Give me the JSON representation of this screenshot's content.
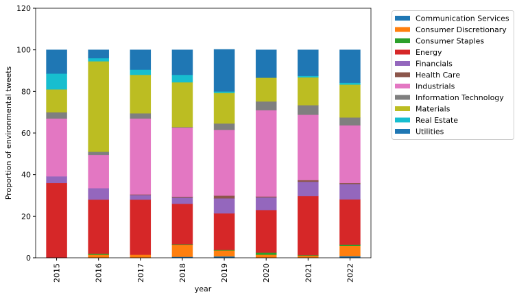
{
  "chart_data": {
    "type": "bar",
    "stacked": true,
    "xlabel": "year",
    "ylabel": "Proportion of environmental tweets",
    "ylim": [
      0,
      120
    ],
    "yticks": [
      0,
      20,
      40,
      60,
      80,
      100,
      120
    ],
    "grid": false,
    "legend_position": "outside-right",
    "categories": [
      "2015",
      "2016",
      "2017",
      "2018",
      "2019",
      "2020",
      "2021",
      "2022"
    ],
    "series": [
      {
        "name": "Communication Services",
        "color": "#1f77b4",
        "values": [
          0,
          0,
          0,
          0.5,
          0.7,
          0,
          0,
          0.8
        ]
      },
      {
        "name": "Consumer Discretionary",
        "color": "#ff7f0e",
        "values": [
          0,
          1.5,
          1.5,
          5.8,
          2.8,
          1.5,
          1.0,
          4.9
        ]
      },
      {
        "name": "Consumer Staples",
        "color": "#2ca02c",
        "values": [
          0,
          0.5,
          0,
          0.2,
          0.3,
          1.0,
          0.3,
          0.7
        ]
      },
      {
        "name": "Energy",
        "color": "#d62728",
        "values": [
          36.0,
          26.0,
          26.5,
          19.5,
          17.6,
          20.5,
          28.4,
          21.7
        ]
      },
      {
        "name": "Financials",
        "color": "#9467bd",
        "values": [
          3.2,
          5.5,
          2.2,
          3.0,
          7.2,
          6.1,
          6.9,
          7.4
        ]
      },
      {
        "name": "Health Care",
        "color": "#8c564b",
        "values": [
          0,
          0,
          0.3,
          0.4,
          1.3,
          0.4,
          0.8,
          0.5
        ]
      },
      {
        "name": "Industrials",
        "color": "#e377c2",
        "values": [
          27.8,
          16.0,
          36.5,
          33.2,
          31.6,
          41.5,
          31.4,
          27.7
        ]
      },
      {
        "name": "Information Technology",
        "color": "#7f7f7f",
        "values": [
          3.0,
          1.5,
          2.5,
          0.3,
          3.1,
          4.2,
          4.6,
          3.8
        ]
      },
      {
        "name": "Materials",
        "color": "#bcbd22",
        "values": [
          11.0,
          43.5,
          18.5,
          21.5,
          14.7,
          11.4,
          13.4,
          15.8
        ]
      },
      {
        "name": "Real Estate",
        "color": "#17becf",
        "values": [
          7.6,
          1.5,
          2.5,
          3.6,
          0.7,
          0,
          0.7,
          0.9
        ]
      },
      {
        "name": "Utilities",
        "color": "#1f77b4",
        "values": [
          11.4,
          4.0,
          9.5,
          12.0,
          20.2,
          13.4,
          12.5,
          15.8
        ]
      }
    ]
  }
}
